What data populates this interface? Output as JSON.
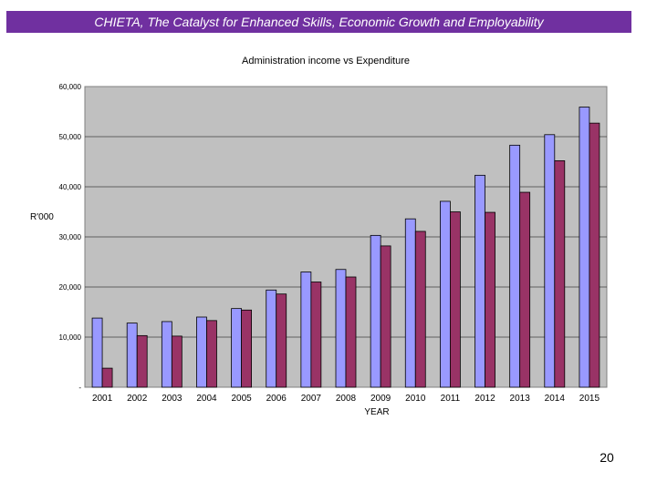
{
  "header": {
    "banner_text": "CHIETA, The Catalyst for Enhanced Skills, Economic Growth and Employability"
  },
  "footer": {
    "page_number": "20"
  },
  "colors": {
    "banner": "#7030a0",
    "plot_bg": "#c0c0c0",
    "series_income": "#9999ff",
    "series_expenditure": "#993366"
  },
  "chart_data": {
    "type": "bar",
    "title": "Administration income vs Expenditure",
    "xlabel": "YEAR",
    "ylabel": "R'000",
    "categories": [
      "2001",
      "2002",
      "2003",
      "2004",
      "2005",
      "2006",
      "2007",
      "2008",
      "2009",
      "2010",
      "2011",
      "2012",
      "2013",
      "2014",
      "2015"
    ],
    "series": [
      {
        "values": [
          13800,
          12800,
          13100,
          14000,
          15700,
          19400,
          23000,
          23500,
          30300,
          33600,
          37100,
          42300,
          48300,
          50400,
          55900
        ]
      },
      {
        "values": [
          3800,
          10300,
          10200,
          13300,
          15400,
          18600,
          21000,
          22000,
          28200,
          31100,
          35000,
          34900,
          38900,
          45200,
          52700
        ]
      }
    ],
    "ylim": [
      0,
      60000
    ],
    "yticks": [
      0,
      10000,
      20000,
      30000,
      40000,
      50000,
      60000
    ],
    "ytick_labels": [
      "-",
      "10,000",
      "20,000",
      "30,000",
      "40,000",
      "50,000",
      "60,000"
    ],
    "grid": true,
    "legend": "none"
  }
}
